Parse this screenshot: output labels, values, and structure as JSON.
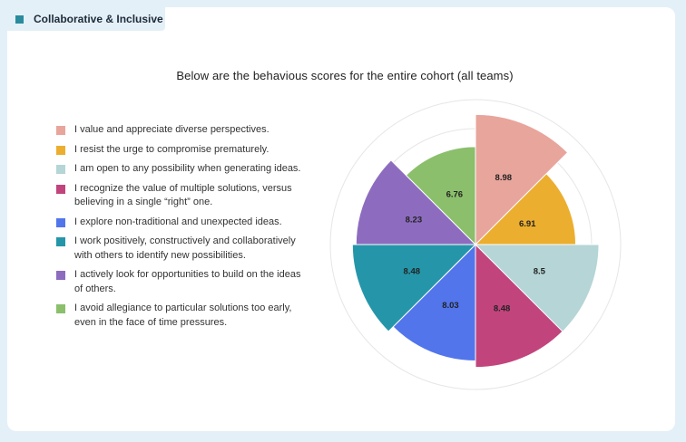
{
  "header": {
    "tab_label": "Collaborative & Inclusive"
  },
  "chart_data": {
    "type": "polar_area",
    "subtitle": "Below are the behavious scores for the entire cohort (all teams)",
    "radial_range": [
      0,
      10
    ],
    "grid": true,
    "legend_placement": "left",
    "series": [
      {
        "label": "I value and appreciate diverse perspectives.",
        "value": 8.98,
        "color": "#e8a59c"
      },
      {
        "label": "I resist the urge to compromise prematurely.",
        "value": 6.91,
        "color": "#ecae2f"
      },
      {
        "label": "I am open to any possibility when generating ideas.",
        "value": 8.5,
        "color": "#b5d5d6"
      },
      {
        "label": "I recognize the value of multiple solutions, versus believing in a single “right” one.",
        "value": 8.48,
        "color": "#c2447d"
      },
      {
        "label": "I explore non-traditional and unexpected ideas.",
        "value": 8.03,
        "color": "#5275ec"
      },
      {
        "label": "I work positively, constructively and collaboratively with others to identify new possibilities.",
        "value": 8.48,
        "color": "#2596aa"
      },
      {
        "label": "I actively look for opportunities to build on the ideas of others.",
        "value": 8.23,
        "color": "#8d6cbf"
      },
      {
        "label": "I avoid allegiance to particular solutions too early, even in the face of time pressures.",
        "value": 6.76,
        "color": "#8bbf6c"
      }
    ]
  }
}
